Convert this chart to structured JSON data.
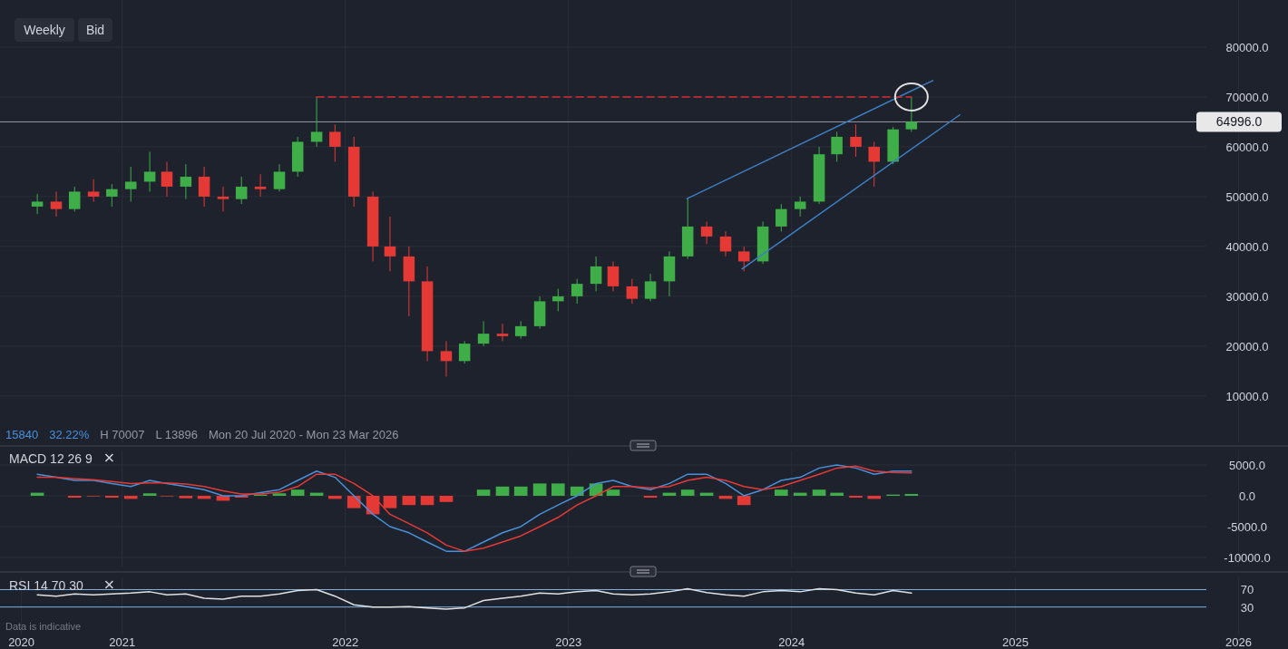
{
  "chart_data": [
    {
      "type": "candlestick",
      "annotations": [
        "Weekly",
        "Bid",
        "15840",
        "32.22%",
        "H 70007",
        "L 13896",
        "Mon 20 Jul 2020 - Mon 23 Mar 2026"
      ],
      "xlim": [
        "2020-06-15",
        "2026-03-23"
      ],
      "ylim": [
        700,
        89450
      ],
      "xticks": [
        {
          "value": "2021-01-01",
          "label": null
        },
        {
          "value": "2022-01-01",
          "label": null
        },
        {
          "value": "2023-01-01",
          "label": null
        },
        {
          "value": "2024-01-01",
          "label": null
        },
        {
          "value": "2025-01-01",
          "label": null
        },
        {
          "value": "2026-01-01",
          "label": null
        }
      ],
      "yticks": [
        {
          "value": 10000,
          "label": "10000.0"
        },
        {
          "value": 20000,
          "label": "20000.0"
        },
        {
          "value": 30000,
          "label": "30000.0"
        },
        {
          "value": 40000,
          "label": "40000.0"
        },
        {
          "value": 50000,
          "label": "50000.0"
        },
        {
          "value": 60000,
          "label": "60000.0"
        },
        {
          "value": 70000,
          "label": "70000.0"
        },
        {
          "value": 80000,
          "label": "80000.0"
        }
      ],
      "tick_labels": "y",
      "grid": true,
      "colors": [
        "#3fae49",
        "#e53935",
        "#3fae49",
        "#e53935",
        "#3fae49",
        "#3fae49",
        "#3fae49",
        "#e53935",
        "#3fae49",
        "#e53935",
        "#e53935",
        "#3fae49",
        "#e53935",
        "#3fae49",
        "#3fae49",
        "#3fae49",
        "#e53935",
        "#e53935",
        "#e53935",
        "#e53935",
        "#e53935",
        "#e53935",
        "#e53935",
        "#3fae49",
        "#3fae49",
        "#e53935",
        "#3fae49",
        "#3fae49",
        "#3fae49",
        "#3fae49",
        "#3fae49",
        "#e53935",
        "#e53935",
        "#3fae49",
        "#3fae49",
        "#3fae49",
        "#e53935",
        "#e53935",
        "#e53935",
        "#3fae49",
        "#3fae49",
        "#3fae49",
        "#3fae49",
        "#3fae49",
        "#e53935",
        "#e53935",
        "#3fae49",
        "#3fae49"
      ],
      "x": [
        "2020-08-15",
        "2020-09-15",
        "2020-10-15",
        "2020-11-15",
        "2020-12-15",
        "2021-01-15",
        "2021-02-15",
        "2021-03-15",
        "2021-04-15",
        "2021-05-15",
        "2021-06-15",
        "2021-07-15",
        "2021-08-15",
        "2021-09-15",
        "2021-10-15",
        "2021-11-15",
        "2021-12-15",
        "2022-01-15",
        "2022-02-15",
        "2022-03-15",
        "2022-04-15",
        "2022-05-15",
        "2022-06-15",
        "2022-07-15",
        "2022-08-15",
        "2022-09-15",
        "2022-10-15",
        "2022-11-15",
        "2022-12-15",
        "2023-01-15",
        "2023-02-15",
        "2023-03-15",
        "2023-04-15",
        "2023-05-15",
        "2023-06-15",
        "2023-07-15",
        "2023-08-15",
        "2023-09-15",
        "2023-10-15",
        "2023-11-15",
        "2023-12-15",
        "2024-01-15",
        "2024-02-15",
        "2024-03-15",
        "2024-04-15",
        "2024-05-15",
        "2024-06-15",
        "2024-07-15"
      ],
      "ohlc": [
        [
          48000,
          50500,
          46500,
          49000
        ],
        [
          49000,
          51000,
          46000,
          47500
        ],
        [
          47500,
          52000,
          47000,
          51000
        ],
        [
          51000,
          53500,
          49000,
          50000
        ],
        [
          50000,
          52500,
          48000,
          51500
        ],
        [
          51500,
          56000,
          49000,
          53000
        ],
        [
          53000,
          59000,
          51000,
          55000
        ],
        [
          55000,
          57000,
          50000,
          52000
        ],
        [
          52000,
          56500,
          49500,
          54000
        ],
        [
          54000,
          56000,
          48000,
          50000
        ],
        [
          50000,
          52000,
          47000,
          49500
        ],
        [
          49500,
          54000,
          48500,
          52000
        ],
        [
          52000,
          54500,
          50000,
          51500
        ],
        [
          51500,
          56500,
          51000,
          55000
        ],
        [
          55000,
          62000,
          54000,
          61000
        ],
        [
          61000,
          70007,
          60000,
          63000
        ],
        [
          63000,
          64500,
          57000,
          60000
        ],
        [
          60000,
          62000,
          48000,
          50000
        ],
        [
          50000,
          51000,
          37000,
          40000
        ],
        [
          40000,
          46000,
          35000,
          38000
        ],
        [
          38000,
          40000,
          26000,
          33000
        ],
        [
          33000,
          36000,
          17000,
          19000
        ],
        [
          19000,
          21000,
          13896,
          17000
        ],
        [
          17000,
          21000,
          16500,
          20500
        ],
        [
          20500,
          25000,
          20000,
          22500
        ],
        [
          22500,
          24500,
          21000,
          22000
        ],
        [
          22000,
          25000,
          21500,
          24000
        ],
        [
          24000,
          30000,
          23500,
          29000
        ],
        [
          29000,
          31500,
          27000,
          30000
        ],
        [
          30000,
          33500,
          28500,
          32500
        ],
        [
          32500,
          38000,
          31000,
          36000
        ],
        [
          36000,
          37000,
          31000,
          32000
        ],
        [
          32000,
          33500,
          28500,
          29500
        ],
        [
          29500,
          34500,
          29000,
          33000
        ],
        [
          33000,
          39000,
          30000,
          38000
        ],
        [
          38000,
          49636,
          37500,
          44000
        ],
        [
          44000,
          45000,
          40500,
          42000
        ],
        [
          42000,
          43000,
          38000,
          39000
        ],
        [
          39000,
          40000,
          35000,
          37000
        ],
        [
          37000,
          45000,
          36500,
          44000
        ],
        [
          44000,
          48500,
          43000,
          47500
        ],
        [
          47500,
          50000,
          46000,
          49000
        ],
        [
          49000,
          60000,
          48500,
          58500
        ],
        [
          58500,
          63000,
          57000,
          62000
        ],
        [
          62000,
          64500,
          58000,
          60000
        ],
        [
          60000,
          61000,
          52000,
          57000
        ],
        [
          57000,
          64000,
          56500,
          63500
        ],
        [
          63500,
          70000,
          63000,
          64996
        ]
      ],
      "series": [
        {
          "type": "line",
          "color": "#3d7fc4",
          "x": [
            "2023-07-14",
            "2024-08-19"
          ],
          "values": [
            49600,
            73300
          ]
        },
        {
          "type": "line",
          "color": "#3d7fc4",
          "x": [
            "2023-10-12",
            "2024-10-02"
          ],
          "values": [
            35500,
            66400
          ]
        },
        {
          "type": "line",
          "color": "#d32f2f",
          "line_style": "dashed",
          "x": [
            "2021-11-15",
            "2024-07-15"
          ],
          "values": [
            70000,
            70000
          ]
        }
      ],
      "ref_lines": [
        {
          "axis": "y",
          "value": 64996,
          "label": "64996.0",
          "color": "#9598a1"
        }
      ]
    },
    {
      "type": "line",
      "title": "MACD 12 26 9",
      "xlim": [
        "2020-06-15",
        "2026-03-23"
      ],
      "ylim": [
        -11470,
        7350
      ],
      "tick_labels": "y",
      "grid": true,
      "xticks": [
        {
          "value": "2021-01-01",
          "label": null
        },
        {
          "value": "2022-01-01",
          "label": null
        },
        {
          "value": "2023-01-01",
          "label": null
        },
        {
          "value": "2024-01-01",
          "label": null
        },
        {
          "value": "2025-01-01",
          "label": null
        },
        {
          "value": "2026-01-01",
          "label": null
        }
      ],
      "yticks": [
        {
          "value": 5000,
          "label": "5000.0"
        },
        {
          "value": 0,
          "label": "0.0"
        },
        {
          "value": -5000,
          "label": "-5000.0"
        },
        {
          "value": -10000,
          "label": "-10000.0"
        }
      ],
      "x": [
        "2020-08-15",
        "2020-09-15",
        "2020-10-15",
        "2020-11-15",
        "2020-12-15",
        "2021-01-15",
        "2021-02-15",
        "2021-03-15",
        "2021-04-15",
        "2021-05-15",
        "2021-06-15",
        "2021-07-15",
        "2021-08-15",
        "2021-09-15",
        "2021-10-15",
        "2021-11-15",
        "2021-12-15",
        "2022-01-15",
        "2022-02-15",
        "2022-03-15",
        "2022-04-15",
        "2022-05-15",
        "2022-06-15",
        "2022-07-15",
        "2022-08-15",
        "2022-09-15",
        "2022-10-15",
        "2022-11-15",
        "2022-12-15",
        "2023-01-15",
        "2023-02-15",
        "2023-03-15",
        "2023-04-15",
        "2023-05-15",
        "2023-06-15",
        "2023-07-15",
        "2023-08-15",
        "2023-09-15",
        "2023-10-15",
        "2023-11-15",
        "2023-12-15",
        "2024-01-15",
        "2024-02-15",
        "2024-03-15",
        "2024-04-15",
        "2024-05-15",
        "2024-06-15",
        "2024-07-15"
      ],
      "series": [
        {
          "type": "bar",
          "values": [
            500,
            0,
            -300,
            -100,
            -300,
            -500,
            400,
            -100,
            -400,
            -500,
            -800,
            -300,
            200,
            400,
            1000,
            500,
            -500,
            -2000,
            -3000,
            -2000,
            -1500,
            -1500,
            -1000,
            0,
            1000,
            1500,
            1500,
            2000,
            2000,
            1500,
            2000,
            1000,
            0,
            -300,
            500,
            1000,
            500,
            -500,
            -1500,
            0,
            1000,
            500,
            1000,
            500,
            -300,
            -500,
            200,
            300
          ],
          "colors": [
            "#3fae49",
            "#3fae49",
            "#e53935",
            "#e53935",
            "#e53935",
            "#e53935",
            "#3fae49",
            "#e53935",
            "#e53935",
            "#e53935",
            "#e53935",
            "#e53935",
            "#3fae49",
            "#3fae49",
            "#3fae49",
            "#3fae49",
            "#e53935",
            "#e53935",
            "#e53935",
            "#e53935",
            "#e53935",
            "#e53935",
            "#e53935",
            "#3fae49",
            "#3fae49",
            "#3fae49",
            "#3fae49",
            "#3fae49",
            "#3fae49",
            "#3fae49",
            "#3fae49",
            "#3fae49",
            "#3fae49",
            "#e53935",
            "#3fae49",
            "#3fae49",
            "#3fae49",
            "#e53935",
            "#e53935",
            "#3fae49",
            "#3fae49",
            "#3fae49",
            "#3fae49",
            "#3fae49",
            "#e53935",
            "#e53935",
            "#3fae49",
            "#3fae49"
          ]
        },
        {
          "type": "line",
          "color": "#4a90d9",
          "values": [
            3500,
            3000,
            2500,
            2500,
            2000,
            1500,
            2500,
            2000,
            1500,
            1000,
            0,
            0,
            500,
            1000,
            2500,
            4000,
            3000,
            0,
            -3000,
            -5000,
            -6000,
            -7500,
            -9000,
            -9000,
            -7500,
            -6000,
            -5000,
            -3000,
            -1500,
            0,
            2000,
            2500,
            1500,
            1000,
            2000,
            3500,
            3500,
            2000,
            0,
            1000,
            2500,
            3000,
            4500,
            5000,
            4500,
            3500,
            4000,
            4000
          ]
        },
        {
          "type": "line",
          "color": "#e53935",
          "values": [
            3000,
            3000,
            2800,
            2600,
            2300,
            2000,
            2100,
            2100,
            1900,
            1500,
            800,
            300,
            300,
            600,
            1500,
            3500,
            3500,
            2000,
            0,
            -3000,
            -4500,
            -6000,
            -8000,
            -9000,
            -8500,
            -7500,
            -6500,
            -5000,
            -3500,
            -1500,
            0,
            1500,
            1500,
            1300,
            1500,
            2500,
            3000,
            2500,
            1500,
            1000,
            1500,
            2500,
            3500,
            4500,
            4800,
            4000,
            3800,
            3700
          ]
        }
      ]
    },
    {
      "type": "line",
      "title": "RSI 14 70 30",
      "xlim": [
        "2020-06-15",
        "2026-03-23"
      ],
      "ylim": [
        -33,
        98
      ],
      "grid": "x",
      "annotations": [
        "Data is indicative"
      ],
      "xticks": [
        {
          "value": "2020-07-20",
          "label": "2020"
        },
        {
          "value": "2021-01-01",
          "label": "2021"
        },
        {
          "value": "2022-01-01",
          "label": "2022"
        },
        {
          "value": "2023-01-01",
          "label": "2023"
        },
        {
          "value": "2024-01-01",
          "label": "2024"
        },
        {
          "value": "2025-01-01",
          "label": "2025"
        },
        {
          "value": "2026-01-01",
          "label": "2026"
        }
      ],
      "yticks": [
        70,
        30
      ],
      "ref_lines": [
        {
          "axis": "y",
          "value": 70,
          "color": "#7fb3e6"
        },
        {
          "axis": "y",
          "value": 30,
          "color": "#7fb3e6"
        }
      ],
      "x": [
        "2020-08-15",
        "2020-09-15",
        "2020-10-15",
        "2020-11-15",
        "2020-12-15",
        "2021-01-15",
        "2021-02-15",
        "2021-03-15",
        "2021-04-15",
        "2021-05-15",
        "2021-06-15",
        "2021-07-15",
        "2021-08-15",
        "2021-09-15",
        "2021-10-15",
        "2021-11-15",
        "2021-12-15",
        "2022-01-15",
        "2022-02-15",
        "2022-03-15",
        "2022-04-15",
        "2022-05-15",
        "2022-06-15",
        "2022-07-15",
        "2022-08-15",
        "2022-09-15",
        "2022-10-15",
        "2022-11-15",
        "2022-12-15",
        "2023-01-15",
        "2023-02-15",
        "2023-03-15",
        "2023-04-15",
        "2023-05-15",
        "2023-06-15",
        "2023-07-15",
        "2023-08-15",
        "2023-09-15",
        "2023-10-15",
        "2023-11-15",
        "2023-12-15",
        "2024-01-15",
        "2024-02-15",
        "2024-03-15",
        "2024-04-15",
        "2024-05-15",
        "2024-06-15",
        "2024-07-15"
      ],
      "series": [
        {
          "type": "line",
          "color": "#e0e0e0",
          "values": [
            58,
            55,
            60,
            58,
            60,
            62,
            65,
            58,
            60,
            50,
            48,
            55,
            55,
            60,
            68,
            70,
            55,
            35,
            30,
            30,
            31,
            28,
            25,
            28,
            45,
            50,
            55,
            62,
            60,
            65,
            68,
            60,
            58,
            60,
            65,
            72,
            63,
            58,
            55,
            65,
            68,
            65,
            72,
            70,
            62,
            58,
            68,
            62
          ]
        }
      ]
    }
  ]
}
